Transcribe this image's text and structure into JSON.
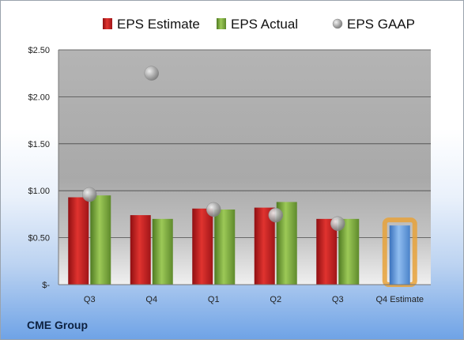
{
  "company": "CME Group",
  "chart_data": {
    "type": "bar",
    "categories": [
      "Q3",
      "Q4",
      "Q1",
      "Q2",
      "Q3",
      "Q4 Estimate"
    ],
    "series": [
      {
        "name": "EPS Estimate",
        "color": "#c0191b",
        "values": [
          0.93,
          0.74,
          0.81,
          0.82,
          0.7,
          null
        ]
      },
      {
        "name": "EPS Actual",
        "color": "#79a83a",
        "values": [
          0.95,
          0.7,
          0.8,
          0.88,
          0.7,
          null
        ]
      },
      {
        "name": "EPS GAAP",
        "type": "scatter",
        "color": "#a7a7a7",
        "values": [
          0.96,
          2.25,
          0.8,
          0.74,
          0.65,
          null
        ]
      }
    ],
    "forecast": {
      "category": "Q4 Estimate",
      "value": 0.63,
      "color": "#5b93d6",
      "highlight": "#e8a23a"
    },
    "ylim": [
      0,
      2.5
    ],
    "yticks": [
      "$-",
      "$0.50",
      "$1.00",
      "$1.50",
      "$2.00",
      "$2.50"
    ],
    "grid": true,
    "legend": "top"
  }
}
